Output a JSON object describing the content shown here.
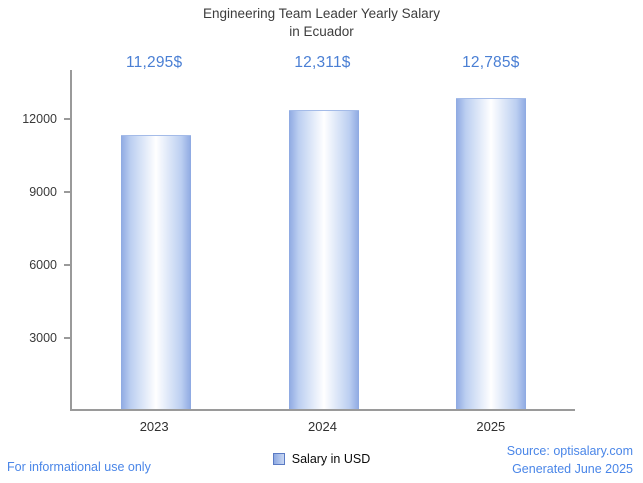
{
  "title": {
    "line1": "Engineering Team Leader Yearly Salary",
    "line2": "in Ecuador"
  },
  "chart_data": {
    "type": "bar",
    "title": "Engineering Team Leader Yearly Salary in Ecuador",
    "categories": [
      "2023",
      "2024",
      "2025"
    ],
    "values": [
      11295,
      12311,
      12785
    ],
    "value_labels": [
      "11,295$",
      "12,311$",
      "12,785$"
    ],
    "series_name": "Salary in USD",
    "xlabel": "",
    "ylabel": "",
    "ylim": [
      0,
      14000
    ],
    "yticks": [
      3000,
      6000,
      9000,
      12000
    ],
    "grid": false,
    "legend_position": "bottom-center"
  },
  "legend": {
    "label": "Salary in USD"
  },
  "footer": {
    "left_note": "For informational use only",
    "source": "Source: optisalary.com",
    "generated": "Generated June 2025"
  },
  "colors": {
    "value_label_text": "#4a7fd4",
    "footer_text": "#4a86e8",
    "bar_edge": "#8ea9e2",
    "bar_center": "#ffffff",
    "axis": "#9a9a9a",
    "title_text": "#3d3d3d"
  }
}
